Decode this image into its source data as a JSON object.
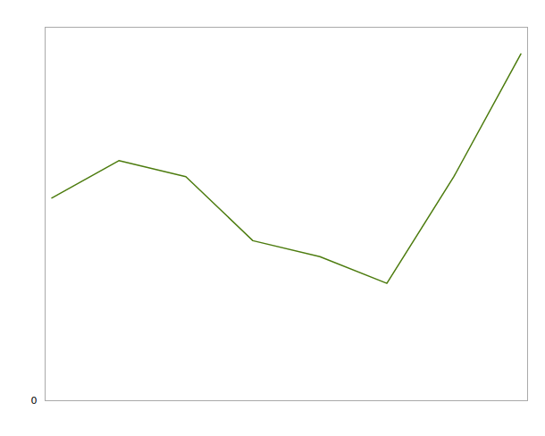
{
  "chart_data": {
    "type": "line",
    "x": [
      0,
      1,
      2,
      3,
      4,
      5,
      6,
      7
    ],
    "values": [
      38,
      45,
      42,
      30,
      27,
      22,
      42,
      65
    ],
    "color": "#4d7c0f",
    "xlim": [
      -0.1,
      7.1
    ],
    "ylim": [
      0,
      70
    ],
    "xticks": [],
    "yticks": [
      0
    ],
    "grid": true,
    "tick_labels": "y"
  }
}
